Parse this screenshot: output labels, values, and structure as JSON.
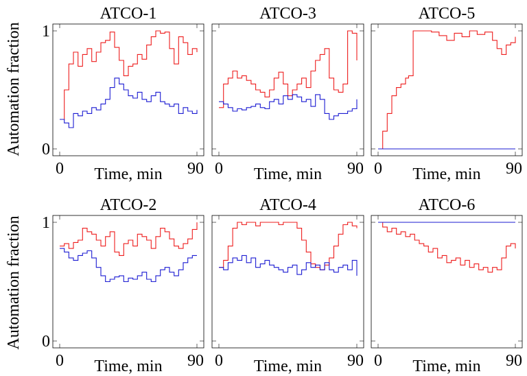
{
  "figure": {
    "ylabel": "Automation fraction",
    "xlabel": "Time, min",
    "colors": {
      "red": "#ee1c1c",
      "blue": "#1a1ad2"
    }
  },
  "chart_data": [
    {
      "type": "line",
      "title": "ATCO-1",
      "xlabel": "Time, min",
      "ylabel": "Automation fraction",
      "xlim": [
        0,
        90
      ],
      "ylim": [
        0,
        1
      ],
      "xticks": [
        "0",
        "90"
      ],
      "yticks": [
        "0",
        "1"
      ],
      "grid": false,
      "series": [
        {
          "color": "#ee1c1c",
          "x": [
            0,
            3,
            6,
            9,
            12,
            15,
            18,
            21,
            24,
            27,
            30,
            33,
            36,
            39,
            42,
            45,
            48,
            51,
            54,
            57,
            60,
            63,
            66,
            69,
            72,
            75,
            78,
            81,
            84,
            87,
            90
          ],
          "y": [
            0.25,
            0.5,
            0.72,
            0.82,
            0.7,
            0.8,
            0.85,
            0.74,
            0.82,
            0.9,
            0.92,
            0.99,
            0.86,
            0.75,
            0.62,
            0.7,
            0.72,
            0.8,
            0.76,
            0.88,
            0.95,
            1.0,
            0.98,
            0.99,
            0.85,
            0.72,
            0.95,
            0.9,
            0.8,
            0.85,
            0.82
          ]
        },
        {
          "color": "#1a1ad2",
          "x": [
            0,
            3,
            6,
            9,
            12,
            15,
            18,
            21,
            24,
            27,
            30,
            33,
            36,
            39,
            42,
            45,
            48,
            51,
            54,
            57,
            60,
            63,
            66,
            69,
            72,
            75,
            78,
            81,
            84,
            87,
            90
          ],
          "y": [
            0.25,
            0.22,
            0.18,
            0.3,
            0.28,
            0.32,
            0.3,
            0.35,
            0.33,
            0.38,
            0.42,
            0.52,
            0.6,
            0.55,
            0.5,
            0.45,
            0.43,
            0.48,
            0.42,
            0.4,
            0.45,
            0.48,
            0.4,
            0.38,
            0.36,
            0.38,
            0.3,
            0.35,
            0.32,
            0.3,
            0.33
          ]
        }
      ]
    },
    {
      "type": "line",
      "title": "ATCO-3",
      "xlabel": "Time, min",
      "ylabel": "",
      "xlim": [
        0,
        90
      ],
      "ylim": [
        0,
        1
      ],
      "xticks": [
        "0",
        "90"
      ],
      "yticks": [],
      "grid": false,
      "series": [
        {
          "color": "#ee1c1c",
          "x": [
            0,
            3,
            6,
            9,
            12,
            15,
            18,
            21,
            24,
            27,
            30,
            33,
            36,
            39,
            42,
            45,
            48,
            51,
            54,
            57,
            60,
            63,
            66,
            69,
            72,
            75,
            78,
            81,
            84,
            87,
            90
          ],
          "y": [
            0.35,
            0.55,
            0.6,
            0.66,
            0.6,
            0.62,
            0.58,
            0.55,
            0.5,
            0.48,
            0.44,
            0.5,
            0.6,
            0.65,
            0.55,
            0.45,
            0.5,
            0.55,
            0.6,
            0.52,
            0.66,
            0.75,
            0.8,
            0.85,
            0.6,
            0.5,
            0.48,
            0.55,
            1.0,
            0.98,
            0.75
          ]
        },
        {
          "color": "#1a1ad2",
          "x": [
            0,
            3,
            6,
            9,
            12,
            15,
            18,
            21,
            24,
            27,
            30,
            33,
            36,
            39,
            42,
            45,
            48,
            51,
            54,
            57,
            60,
            63,
            66,
            69,
            72,
            75,
            78,
            81,
            84,
            87,
            90
          ],
          "y": [
            0.4,
            0.38,
            0.35,
            0.32,
            0.34,
            0.33,
            0.35,
            0.36,
            0.38,
            0.35,
            0.34,
            0.4,
            0.42,
            0.38,
            0.45,
            0.42,
            0.46,
            0.44,
            0.4,
            0.42,
            0.36,
            0.46,
            0.42,
            0.3,
            0.25,
            0.28,
            0.3,
            0.3,
            0.32,
            0.34,
            0.42
          ]
        }
      ]
    },
    {
      "type": "line",
      "title": "ATCO-5",
      "xlabel": "Time, min",
      "ylabel": "",
      "xlim": [
        0,
        90
      ],
      "ylim": [
        0,
        1
      ],
      "xticks": [
        "0",
        "90"
      ],
      "yticks": [],
      "grid": false,
      "series": [
        {
          "color": "#ee1c1c",
          "x": [
            0,
            3,
            6,
            9,
            12,
            15,
            18,
            20,
            23,
            26,
            30,
            35,
            40,
            45,
            50,
            55,
            60,
            65,
            70,
            75,
            78,
            81,
            84,
            87,
            90
          ],
          "y": [
            0.0,
            0.15,
            0.3,
            0.45,
            0.52,
            0.55,
            0.6,
            0.62,
            1.0,
            1.0,
            1.0,
            0.99,
            0.96,
            0.92,
            0.98,
            0.95,
            1.0,
            0.97,
            0.99,
            0.92,
            0.85,
            0.8,
            0.88,
            0.9,
            0.95
          ]
        },
        {
          "color": "#1a1ad2",
          "x": [
            0,
            90
          ],
          "y": [
            0,
            0
          ]
        }
      ]
    },
    {
      "type": "line",
      "title": "ATCO-2",
      "xlabel": "Time, min",
      "ylabel": "Automation fraction",
      "xlim": [
        0,
        90
      ],
      "ylim": [
        0,
        1
      ],
      "xticks": [
        "0",
        "90"
      ],
      "yticks": [
        "0",
        "1"
      ],
      "grid": false,
      "series": [
        {
          "color": "#ee1c1c",
          "x": [
            0,
            3,
            6,
            9,
            12,
            15,
            18,
            21,
            24,
            27,
            30,
            33,
            36,
            39,
            42,
            45,
            48,
            51,
            54,
            57,
            60,
            63,
            66,
            69,
            72,
            75,
            78,
            81,
            84,
            87,
            90
          ],
          "y": [
            0.8,
            0.82,
            0.78,
            0.83,
            0.85,
            0.95,
            0.92,
            0.9,
            0.85,
            0.8,
            0.88,
            0.92,
            0.75,
            0.72,
            0.82,
            0.85,
            0.8,
            0.9,
            0.88,
            0.85,
            0.78,
            0.88,
            0.95,
            0.92,
            0.86,
            0.8,
            0.78,
            0.82,
            0.86,
            0.94,
            1.0
          ]
        },
        {
          "color": "#1a1ad2",
          "x": [
            0,
            3,
            6,
            9,
            12,
            15,
            18,
            21,
            24,
            27,
            30,
            33,
            36,
            39,
            42,
            45,
            48,
            51,
            54,
            57,
            60,
            63,
            66,
            69,
            72,
            75,
            78,
            81,
            84,
            87,
            90
          ],
          "y": [
            0.78,
            0.75,
            0.7,
            0.68,
            0.72,
            0.74,
            0.76,
            0.7,
            0.62,
            0.55,
            0.5,
            0.52,
            0.54,
            0.55,
            0.5,
            0.53,
            0.52,
            0.55,
            0.58,
            0.52,
            0.5,
            0.55,
            0.6,
            0.62,
            0.58,
            0.55,
            0.6,
            0.66,
            0.7,
            0.72,
            0.72
          ]
        }
      ]
    },
    {
      "type": "line",
      "title": "ATCO-4",
      "xlabel": "Time, min",
      "ylabel": "",
      "xlim": [
        0,
        90
      ],
      "ylim": [
        0,
        1
      ],
      "xticks": [
        "0",
        "90"
      ],
      "yticks": [],
      "grid": false,
      "series": [
        {
          "color": "#ee1c1c",
          "x": [
            0,
            3,
            6,
            9,
            12,
            15,
            18,
            21,
            24,
            27,
            30,
            33,
            36,
            39,
            42,
            45,
            48,
            51,
            54,
            57,
            60,
            63,
            66,
            69,
            72,
            75,
            78,
            81,
            84,
            87,
            90
          ],
          "y": [
            0.62,
            0.68,
            0.8,
            0.95,
            1.0,
            0.98,
            1.0,
            1.0,
            0.97,
            1.0,
            1.0,
            1.0,
            1.0,
            0.98,
            1.0,
            1.0,
            1.0,
            0.95,
            0.85,
            0.75,
            0.65,
            0.62,
            0.6,
            0.64,
            0.7,
            0.8,
            0.9,
            0.98,
            1.0,
            0.97,
            0.95
          ]
        },
        {
          "color": "#1a1ad2",
          "x": [
            0,
            3,
            6,
            9,
            12,
            15,
            18,
            21,
            24,
            27,
            30,
            33,
            36,
            39,
            42,
            45,
            48,
            51,
            54,
            57,
            60,
            63,
            66,
            69,
            72,
            75,
            78,
            81,
            84,
            87,
            90
          ],
          "y": [
            0.62,
            0.6,
            0.66,
            0.7,
            0.68,
            0.72,
            0.66,
            0.7,
            0.62,
            0.65,
            0.68,
            0.64,
            0.62,
            0.6,
            0.58,
            0.62,
            0.64,
            0.56,
            0.6,
            0.66,
            0.62,
            0.64,
            0.6,
            0.66,
            0.6,
            0.58,
            0.62,
            0.64,
            0.6,
            0.68,
            0.55
          ]
        }
      ]
    },
    {
      "type": "line",
      "title": "ATCO-6",
      "xlabel": "Time, min",
      "ylabel": "",
      "xlim": [
        0,
        90
      ],
      "ylim": [
        0,
        1
      ],
      "xticks": [
        "0",
        "90"
      ],
      "yticks": [],
      "grid": false,
      "series": [
        {
          "color": "#ee1c1c",
          "x": [
            0,
            3,
            6,
            9,
            12,
            15,
            18,
            21,
            24,
            27,
            30,
            33,
            36,
            39,
            42,
            45,
            48,
            51,
            54,
            57,
            60,
            63,
            66,
            69,
            72,
            75,
            78,
            81,
            84,
            87,
            90
          ],
          "y": [
            1.0,
            0.96,
            0.92,
            0.95,
            0.9,
            0.92,
            0.88,
            0.9,
            0.85,
            0.82,
            0.8,
            0.75,
            0.78,
            0.7,
            0.72,
            0.66,
            0.68,
            0.7,
            0.64,
            0.68,
            0.62,
            0.65,
            0.6,
            0.62,
            0.58,
            0.62,
            0.6,
            0.7,
            0.8,
            0.82,
            0.78
          ]
        },
        {
          "color": "#1a1ad2",
          "x": [
            0,
            90
          ],
          "y": [
            1.0,
            1.0
          ]
        }
      ]
    }
  ]
}
